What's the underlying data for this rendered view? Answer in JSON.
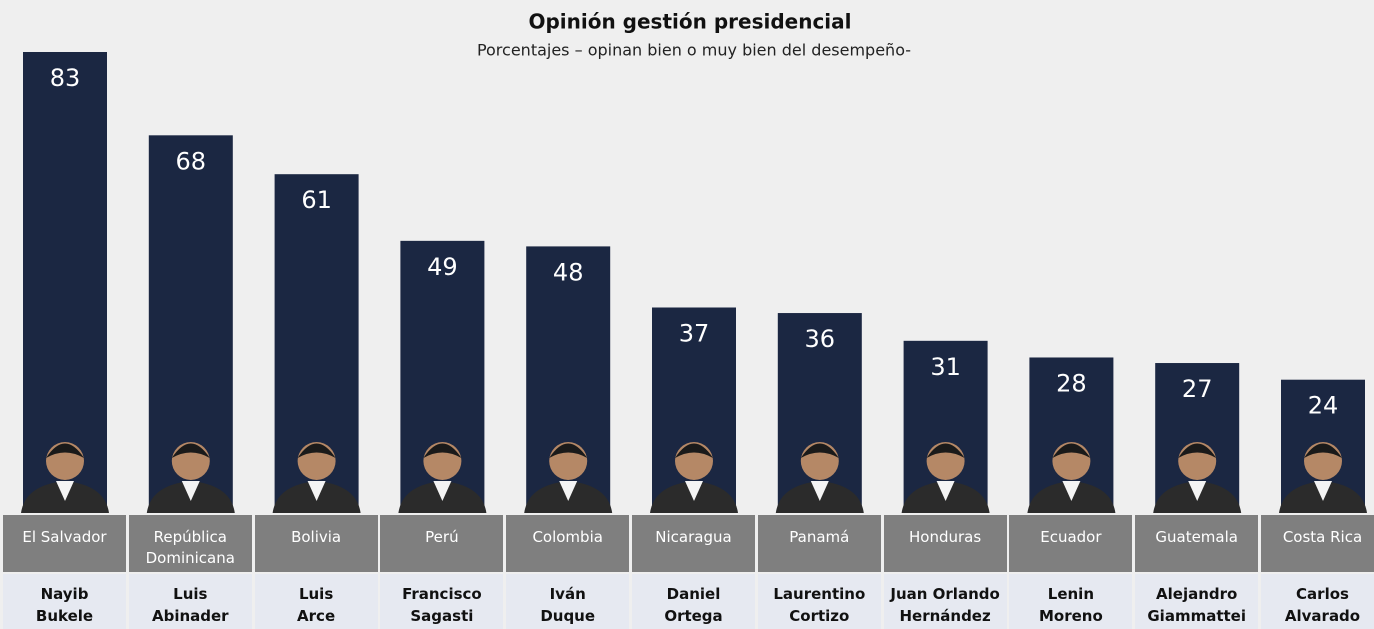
{
  "chart_data": {
    "type": "bar",
    "title": "Opinión gestión presidencial",
    "subtitle": "Porcentajes – opinan bien o muy bien del desempeño-",
    "categories": [
      "El Salvador",
      "República Dominicana",
      "Bolivia",
      "Perú",
      "Colombia",
      "Nicaragua",
      "Panamá",
      "Honduras",
      "Ecuador",
      "Guatemala",
      "Costa Rica"
    ],
    "people": [
      [
        "Nayib",
        "Bukele"
      ],
      [
        "Luis",
        "Abinader"
      ],
      [
        "Luis",
        "Arce"
      ],
      [
        "Francisco",
        "Sagasti"
      ],
      [
        "Iván",
        "Duque"
      ],
      [
        "Daniel",
        "Ortega"
      ],
      [
        "Laurentino",
        "Cortizo"
      ],
      [
        "Juan Orlando",
        "Hernández"
      ],
      [
        "Lenin",
        "Moreno"
      ],
      [
        "Alejandro",
        "Giammattei"
      ],
      [
        "Carlos",
        "Alvarado"
      ]
    ],
    "values": [
      83,
      68,
      61,
      49,
      48,
      37,
      36,
      31,
      28,
      27,
      24
    ],
    "color": "#1b2742"
  }
}
